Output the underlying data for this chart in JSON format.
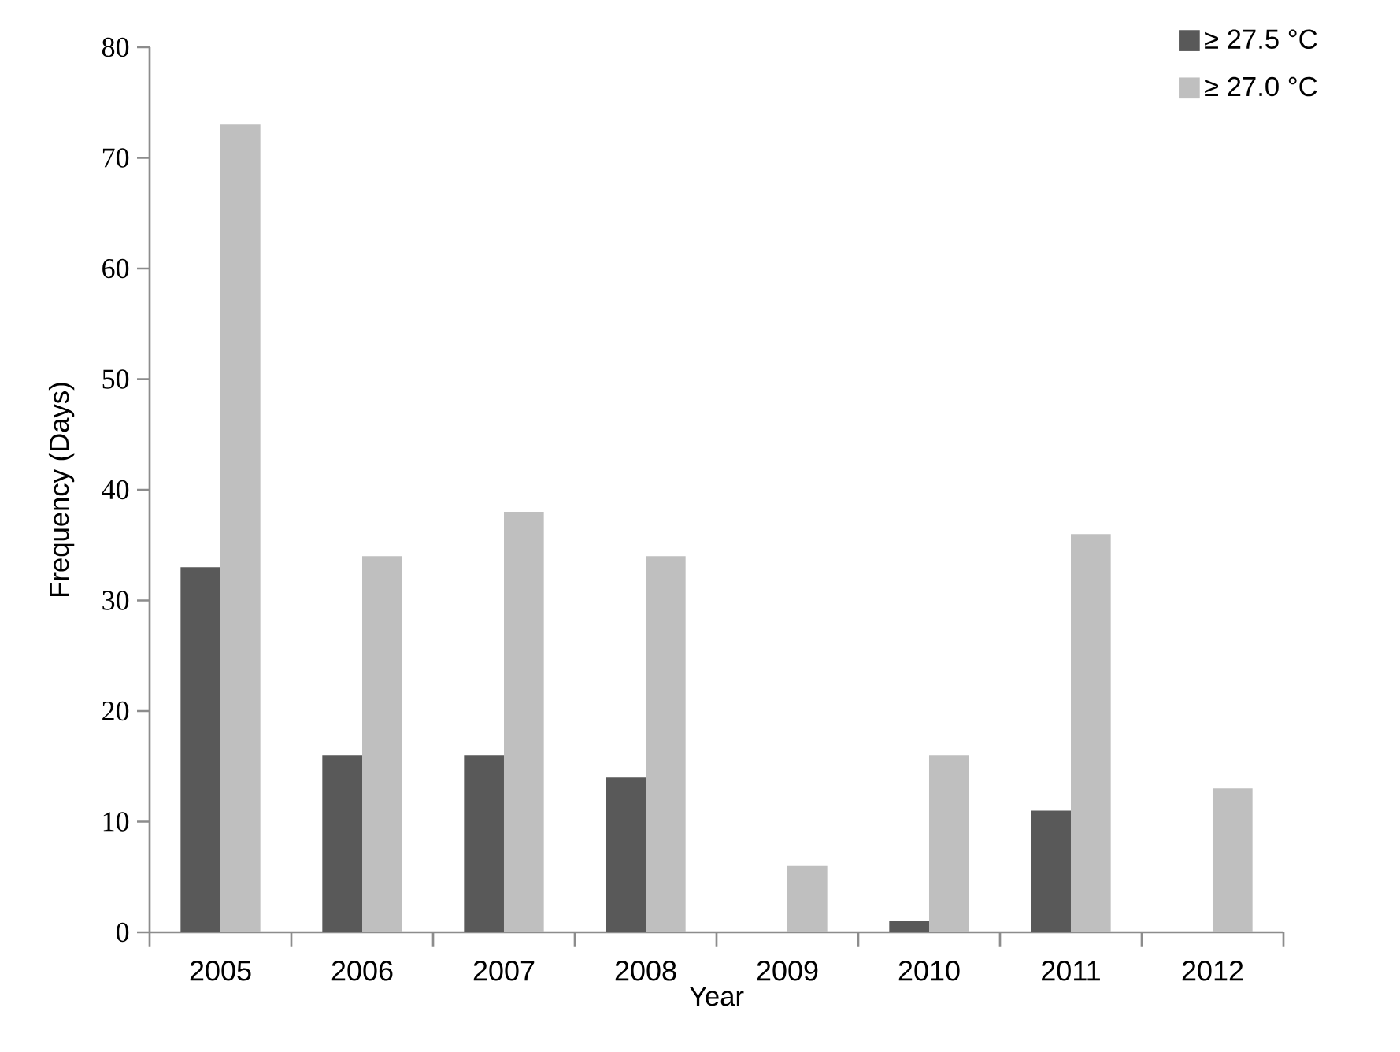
{
  "chart_data": {
    "type": "bar",
    "xlabel": "Year",
    "ylabel": "Frequency (Days)",
    "categories": [
      "2005",
      "2006",
      "2007",
      "2008",
      "2009",
      "2010",
      "2011",
      "2012"
    ],
    "series": [
      {
        "name": "≥ 27.5 °C",
        "color": "#595959",
        "values": [
          33,
          16,
          16,
          14,
          0,
          1,
          11,
          0
        ]
      },
      {
        "name": "≥ 27.0 °C",
        "color": "#bfbfbf",
        "values": [
          73,
          34,
          38,
          34,
          6,
          16,
          36,
          13
        ]
      }
    ],
    "ylim": [
      0,
      80
    ],
    "yticks": [
      0,
      10,
      20,
      30,
      40,
      50,
      60,
      70,
      80
    ],
    "legend": "top right"
  }
}
